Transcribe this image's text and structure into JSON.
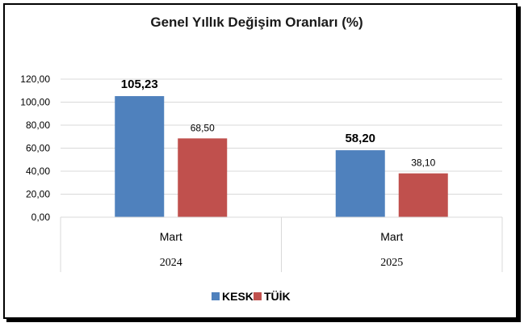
{
  "chart_data": {
    "type": "bar",
    "title": "Genel Yıllık Değişim Oranları (%)",
    "categories": [
      "Mart",
      "Mart"
    ],
    "groups": [
      "2024",
      "2025"
    ],
    "series": [
      {
        "name": "KESK",
        "values": [
          105.23,
          58.2
        ],
        "labels": [
          "105,23",
          "58,20"
        ],
        "color": "#4F81BD"
      },
      {
        "name": "TÜİK",
        "values": [
          68.5,
          38.1
        ],
        "labels": [
          "68,50",
          "38,10"
        ],
        "color": "#C0504D"
      }
    ],
    "ylim": [
      0,
      120
    ],
    "yticks": [
      0,
      20,
      40,
      60,
      80,
      100,
      120
    ],
    "ytick_labels": [
      "0,00",
      "20,00",
      "40,00",
      "60,00",
      "80,00",
      "100,00",
      "120,00"
    ],
    "grid": true,
    "legend": "bottom"
  }
}
